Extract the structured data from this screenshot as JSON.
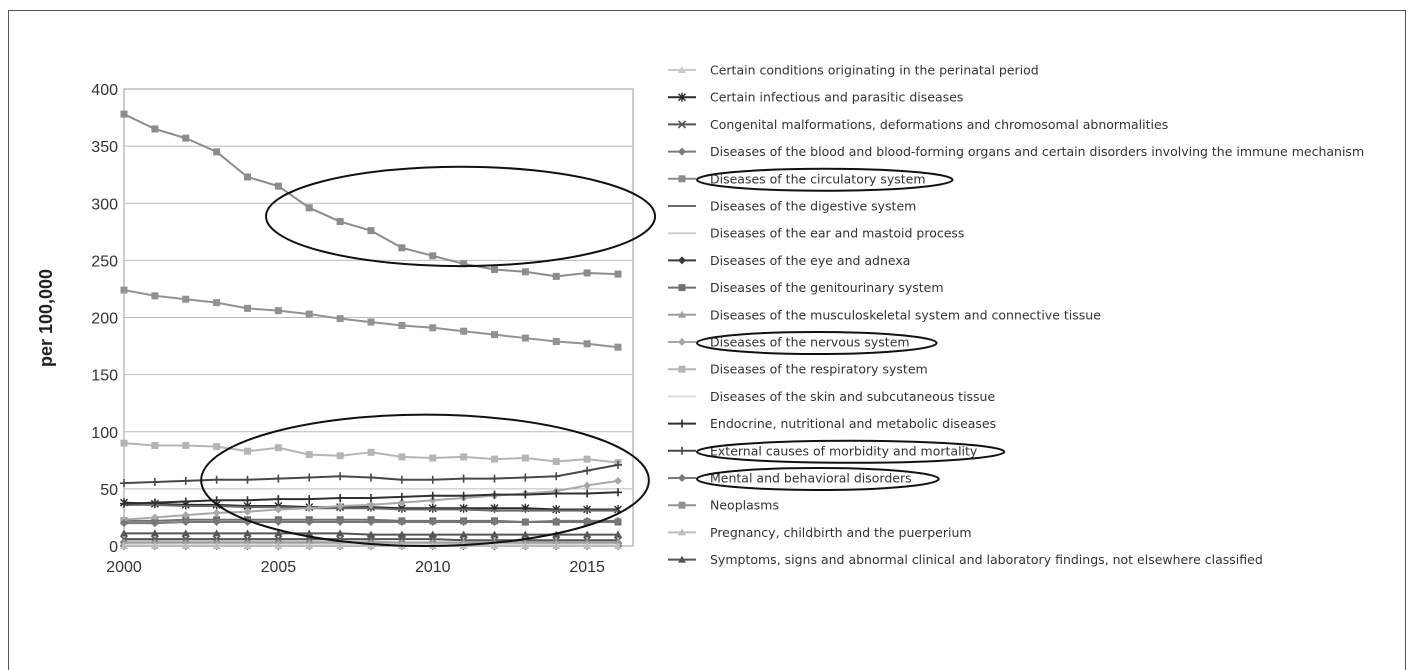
{
  "chart_data": {
    "type": "line",
    "title": "",
    "xlabel": "",
    "ylabel": "per 100,000",
    "xlim": [
      2000,
      2016
    ],
    "ylim": [
      0,
      400
    ],
    "x_ticks": [
      2000,
      2005,
      2010,
      2015
    ],
    "y_ticks": [
      0,
      50,
      100,
      150,
      200,
      250,
      300,
      350,
      400
    ],
    "grid": "horizontal",
    "legend_position": "right",
    "x": [
      2000,
      2001,
      2002,
      2003,
      2004,
      2005,
      2006,
      2007,
      2008,
      2009,
      2010,
      2011,
      2012,
      2013,
      2014,
      2015,
      2016
    ],
    "series": [
      {
        "name": "Certain conditions originating in the perinatal period",
        "color": "#c8c8c8",
        "marker": "tri",
        "values": [
          5,
          5,
          4,
          4,
          4,
          4,
          4,
          4,
          4,
          3,
          3,
          3,
          3,
          3,
          3,
          3,
          3
        ]
      },
      {
        "name": "Certain infectious and parasitic diseases",
        "color": "#2a2a2a",
        "marker": "star",
        "values": [
          38,
          37,
          36,
          36,
          35,
          35,
          34,
          34,
          34,
          33,
          33,
          33,
          33,
          33,
          32,
          32,
          32
        ]
      },
      {
        "name": "Congenital malformations, deformations and chromosomal abnormalities",
        "color": "#555555",
        "marker": "x",
        "values": [
          6,
          6,
          6,
          6,
          6,
          6,
          6,
          6,
          6,
          6,
          6,
          5,
          5,
          5,
          5,
          5,
          5
        ]
      },
      {
        "name": "Diseases of the blood and blood-forming organs and certain disorders involving the immune mechanism",
        "color": "#7a7a7a",
        "marker": "diamond",
        "values": [
          3,
          3,
          3,
          3,
          3,
          3,
          3,
          3,
          3,
          3,
          3,
          3,
          3,
          3,
          3,
          3,
          3
        ]
      },
      {
        "name": "Diseases of the circulatory system",
        "color": "#8c8c8c",
        "marker": "square",
        "values": [
          378,
          365,
          357,
          345,
          323,
          315,
          296,
          284,
          276,
          261,
          254,
          247,
          242,
          240,
          236,
          239,
          238
        ]
      },
      {
        "name": "Diseases of the digestive system",
        "color": "#6a6a6a",
        "marker": "none",
        "values": [
          36,
          36,
          35,
          35,
          34,
          34,
          33,
          33,
          33,
          32,
          32,
          32,
          31,
          31,
          31,
          31,
          31
        ]
      },
      {
        "name": "Diseases of the ear and mastoid process",
        "color": "#d0d0d0",
        "marker": "none",
        "values": [
          0,
          0,
          0,
          0,
          0,
          0,
          0,
          0,
          0,
          0,
          0,
          0,
          0,
          0,
          0,
          0,
          0
        ]
      },
      {
        "name": "Diseases of the eye and adnexa",
        "color": "#3a3a3a",
        "marker": "diamond",
        "values": [
          0,
          0,
          0,
          0,
          0,
          0,
          0,
          0,
          0,
          0,
          0,
          0,
          0,
          0,
          0,
          0,
          0
        ]
      },
      {
        "name": "Diseases of the genitourinary system",
        "color": "#707070",
        "marker": "square",
        "values": [
          22,
          22,
          23,
          23,
          23,
          23,
          23,
          23,
          23,
          22,
          22,
          22,
          22,
          21,
          21,
          21,
          21
        ]
      },
      {
        "name": "Diseases of the musculoskeletal system and connective tissue",
        "color": "#9e9e9e",
        "marker": "tri",
        "values": [
          3,
          3,
          3,
          3,
          3,
          3,
          3,
          3,
          3,
          3,
          3,
          3,
          3,
          3,
          3,
          3,
          3
        ]
      },
      {
        "name": "Diseases of the nervous system",
        "color": "#a8a8a8",
        "marker": "diamond",
        "values": [
          23,
          25,
          27,
          29,
          30,
          32,
          33,
          35,
          36,
          38,
          40,
          42,
          44,
          46,
          48,
          53,
          57
        ]
      },
      {
        "name": "Diseases of the respiratory system",
        "color": "#b5b5b5",
        "marker": "square",
        "values": [
          90,
          88,
          88,
          87,
          83,
          86,
          80,
          79,
          82,
          78,
          77,
          78,
          76,
          77,
          74,
          76,
          73
        ]
      },
      {
        "name": "Diseases of the skin and subcutaneous tissue",
        "color": "#dcdcdc",
        "marker": "none",
        "values": [
          1,
          1,
          1,
          1,
          1,
          1,
          1,
          1,
          1,
          1,
          1,
          1,
          1,
          1,
          1,
          1,
          1
        ]
      },
      {
        "name": "Endocrine, nutritional and metabolic diseases",
        "color": "#303030",
        "marker": "plus",
        "values": [
          37,
          38,
          39,
          40,
          40,
          41,
          41,
          42,
          42,
          43,
          44,
          44,
          45,
          45,
          46,
          46,
          47
        ]
      },
      {
        "name": "External causes of morbidity and mortality",
        "color": "#484848",
        "marker": "plus",
        "values": [
          55,
          56,
          57,
          58,
          58,
          59,
          60,
          61,
          60,
          58,
          58,
          59,
          59,
          60,
          61,
          66,
          71
        ]
      },
      {
        "name": "Mental and behavioral disorders",
        "color": "#787878",
        "marker": "diamond",
        "values": [
          20,
          20,
          21,
          21,
          21,
          21,
          21,
          21,
          21,
          21,
          21,
          21,
          21,
          21,
          22,
          22,
          22
        ]
      },
      {
        "name": "Neoplasms",
        "color": "#929292",
        "marker": "square",
        "values": [
          224,
          219,
          216,
          213,
          208,
          206,
          203,
          199,
          196,
          193,
          191,
          188,
          185,
          182,
          179,
          177,
          174
        ]
      },
      {
        "name": "Pregnancy, childbirth and the puerperium",
        "color": "#bdbdbd",
        "marker": "tri",
        "values": [
          0,
          0,
          0,
          0,
          0,
          0,
          0,
          0,
          0,
          0,
          0,
          0,
          0,
          0,
          0,
          0,
          0
        ]
      },
      {
        "name": "Symptoms, signs and abnormal clinical and laboratory findings, not elsewhere classified",
        "color": "#555555",
        "marker": "tri",
        "values": [
          11,
          11,
          11,
          11,
          11,
          11,
          11,
          11,
          10,
          10,
          10,
          10,
          10,
          10,
          10,
          10,
          10
        ]
      }
    ],
    "highlight_legend_indices": [
      4,
      10,
      14,
      15
    ],
    "highlight_regions": [
      {
        "x": [
          2004.6,
          2017.2
        ],
        "y": [
          245,
          332
        ],
        "label": ""
      },
      {
        "x": [
          2002.5,
          2017.0
        ],
        "y": [
          0,
          115
        ],
        "label": ""
      }
    ]
  }
}
